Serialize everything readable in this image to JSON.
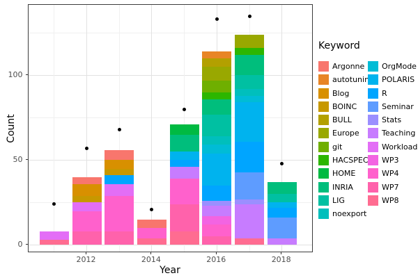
{
  "chart_data": {
    "type": "bar",
    "variant": "stacked-bar-with-points",
    "title": "",
    "xlabel": "Year",
    "ylabel": "Count",
    "legend_title": "Keyword",
    "legend_position": "right",
    "grid": "on",
    "x": [
      2011,
      2012,
      2013,
      2014,
      2015,
      2016,
      2017,
      2018
    ],
    "x_major_ticks": [
      2012,
      2014,
      2016,
      2018
    ],
    "x_tick_labels": [
      "2012",
      "2014",
      "2016",
      "2018"
    ],
    "y_major_ticks": [
      0,
      50,
      100
    ],
    "y_tick_labels": [
      "0",
      "50",
      "100"
    ],
    "y_minor_ticks": [
      25,
      75,
      125
    ],
    "ylim": [
      -5,
      141
    ],
    "keywords": [
      {
        "name": "Argonne",
        "color": "#F8766D"
      },
      {
        "name": "autotuning",
        "color": "#E88526"
      },
      {
        "name": "Blog",
        "color": "#D89000"
      },
      {
        "name": "BOINC",
        "color": "#C79800"
      },
      {
        "name": "BULL",
        "color": "#B3A000"
      },
      {
        "name": "Europe",
        "color": "#99A800"
      },
      {
        "name": "git",
        "color": "#6FAF00"
      },
      {
        "name": "HACSPECIS",
        "color": "#2CB600"
      },
      {
        "name": "HOME",
        "color": "#00BA42"
      },
      {
        "name": "INRIA",
        "color": "#00BE7C"
      },
      {
        "name": "LIG",
        "color": "#00C0A2"
      },
      {
        "name": "noexport",
        "color": "#00BFBC"
      },
      {
        "name": "OrgMode",
        "color": "#00BCD6"
      },
      {
        "name": "POLARIS",
        "color": "#00B3EE"
      },
      {
        "name": "R",
        "color": "#00A5FF"
      },
      {
        "name": "Seminar",
        "color": "#5E9CFF"
      },
      {
        "name": "Stats",
        "color": "#9B8FFF"
      },
      {
        "name": "Teaching",
        "color": "#C77CFF"
      },
      {
        "name": "Workload",
        "color": "#E36EF6"
      },
      {
        "name": "WP3",
        "color": "#F364E2"
      },
      {
        "name": "WP4",
        "color": "#FF61CC"
      },
      {
        "name": "WP7",
        "color": "#FF62AB"
      },
      {
        "name": "WP8",
        "color": "#FF6C91"
      }
    ],
    "stacks": [
      {
        "year": 2011,
        "total": 8,
        "segments": [
          {
            "keyword": "Workload",
            "value": 5
          },
          {
            "keyword": "WP8",
            "value": 3
          }
        ]
      },
      {
        "year": 2012,
        "total": 40,
        "segments": [
          {
            "keyword": "Argonne",
            "value": 4
          },
          {
            "keyword": "Blog",
            "value": 7
          },
          {
            "keyword": "BOINC",
            "value": 4
          },
          {
            "keyword": "Workload",
            "value": 5
          },
          {
            "keyword": "WP4",
            "value": 12
          },
          {
            "keyword": "WP7",
            "value": 8
          }
        ]
      },
      {
        "year": 2013,
        "total": 56,
        "segments": [
          {
            "keyword": "Argonne",
            "value": 6
          },
          {
            "keyword": "Blog",
            "value": 5
          },
          {
            "keyword": "BOINC",
            "value": 4
          },
          {
            "keyword": "R",
            "value": 5
          },
          {
            "keyword": "Workload",
            "value": 7
          },
          {
            "keyword": "WP4",
            "value": 21
          },
          {
            "keyword": "WP7",
            "value": 8
          }
        ]
      },
      {
        "year": 2014,
        "total": 15,
        "segments": [
          {
            "keyword": "Argonne",
            "value": 5
          },
          {
            "keyword": "WP4",
            "value": 6
          },
          {
            "keyword": "WP8",
            "value": 4
          }
        ]
      },
      {
        "year": 2015,
        "total": 71,
        "segments": [
          {
            "keyword": "HOME",
            "value": 6
          },
          {
            "keyword": "INRIA",
            "value": 10
          },
          {
            "keyword": "POLARIS",
            "value": 5
          },
          {
            "keyword": "R",
            "value": 4
          },
          {
            "keyword": "Teaching",
            "value": 7
          },
          {
            "keyword": "WP4",
            "value": 15
          },
          {
            "keyword": "WP7",
            "value": 16
          },
          {
            "keyword": "WP8",
            "value": 8
          }
        ]
      },
      {
        "year": 2016,
        "total": 114,
        "segments": [
          {
            "keyword": "autotuning",
            "value": 4
          },
          {
            "keyword": "BULL",
            "value": 5
          },
          {
            "keyword": "Europe",
            "value": 8
          },
          {
            "keyword": "git",
            "value": 7
          },
          {
            "keyword": "HACSPECIS",
            "value": 4
          },
          {
            "keyword": "INRIA",
            "value": 9
          },
          {
            "keyword": "LIG",
            "value": 13
          },
          {
            "keyword": "noexport",
            "value": 5
          },
          {
            "keyword": "OrgMode",
            "value": 5
          },
          {
            "keyword": "POLARIS",
            "value": 19
          },
          {
            "keyword": "R",
            "value": 9
          },
          {
            "keyword": "Stats",
            "value": 3
          },
          {
            "keyword": "Teaching",
            "value": 6
          },
          {
            "keyword": "WP3",
            "value": 5
          },
          {
            "keyword": "WP4",
            "value": 7
          },
          {
            "keyword": "WP7",
            "value": 5
          }
        ]
      },
      {
        "year": 2017,
        "total": 124,
        "segments": [
          {
            "keyword": "Europe",
            "value": 8
          },
          {
            "keyword": "HACSPECIS",
            "value": 4
          },
          {
            "keyword": "INRIA",
            "value": 12
          },
          {
            "keyword": "LIG",
            "value": 8
          },
          {
            "keyword": "noexport",
            "value": 4
          },
          {
            "keyword": "OrgMode",
            "value": 4
          },
          {
            "keyword": "POLARIS",
            "value": 23
          },
          {
            "keyword": "R",
            "value": 18
          },
          {
            "keyword": "Seminar",
            "value": 16
          },
          {
            "keyword": "Stats",
            "value": 3
          },
          {
            "keyword": "Teaching",
            "value": 20
          },
          {
            "keyword": "WP8",
            "value": 4
          }
        ]
      },
      {
        "year": 2018,
        "total": 37,
        "segments": [
          {
            "keyword": "INRIA",
            "value": 7
          },
          {
            "keyword": "LIG",
            "value": 5
          },
          {
            "keyword": "POLARIS",
            "value": 3
          },
          {
            "keyword": "R",
            "value": 6
          },
          {
            "keyword": "Seminar",
            "value": 12
          },
          {
            "keyword": "Teaching",
            "value": 4
          }
        ]
      }
    ],
    "points": [
      {
        "year": 2011,
        "value": 24
      },
      {
        "year": 2012,
        "value": 57
      },
      {
        "year": 2013,
        "value": 68
      },
      {
        "year": 2014,
        "value": 21
      },
      {
        "year": 2015,
        "value": 80
      },
      {
        "year": 2016,
        "value": 133
      },
      {
        "year": 2017,
        "value": 135
      },
      {
        "year": 2018,
        "value": 48
      }
    ]
  }
}
